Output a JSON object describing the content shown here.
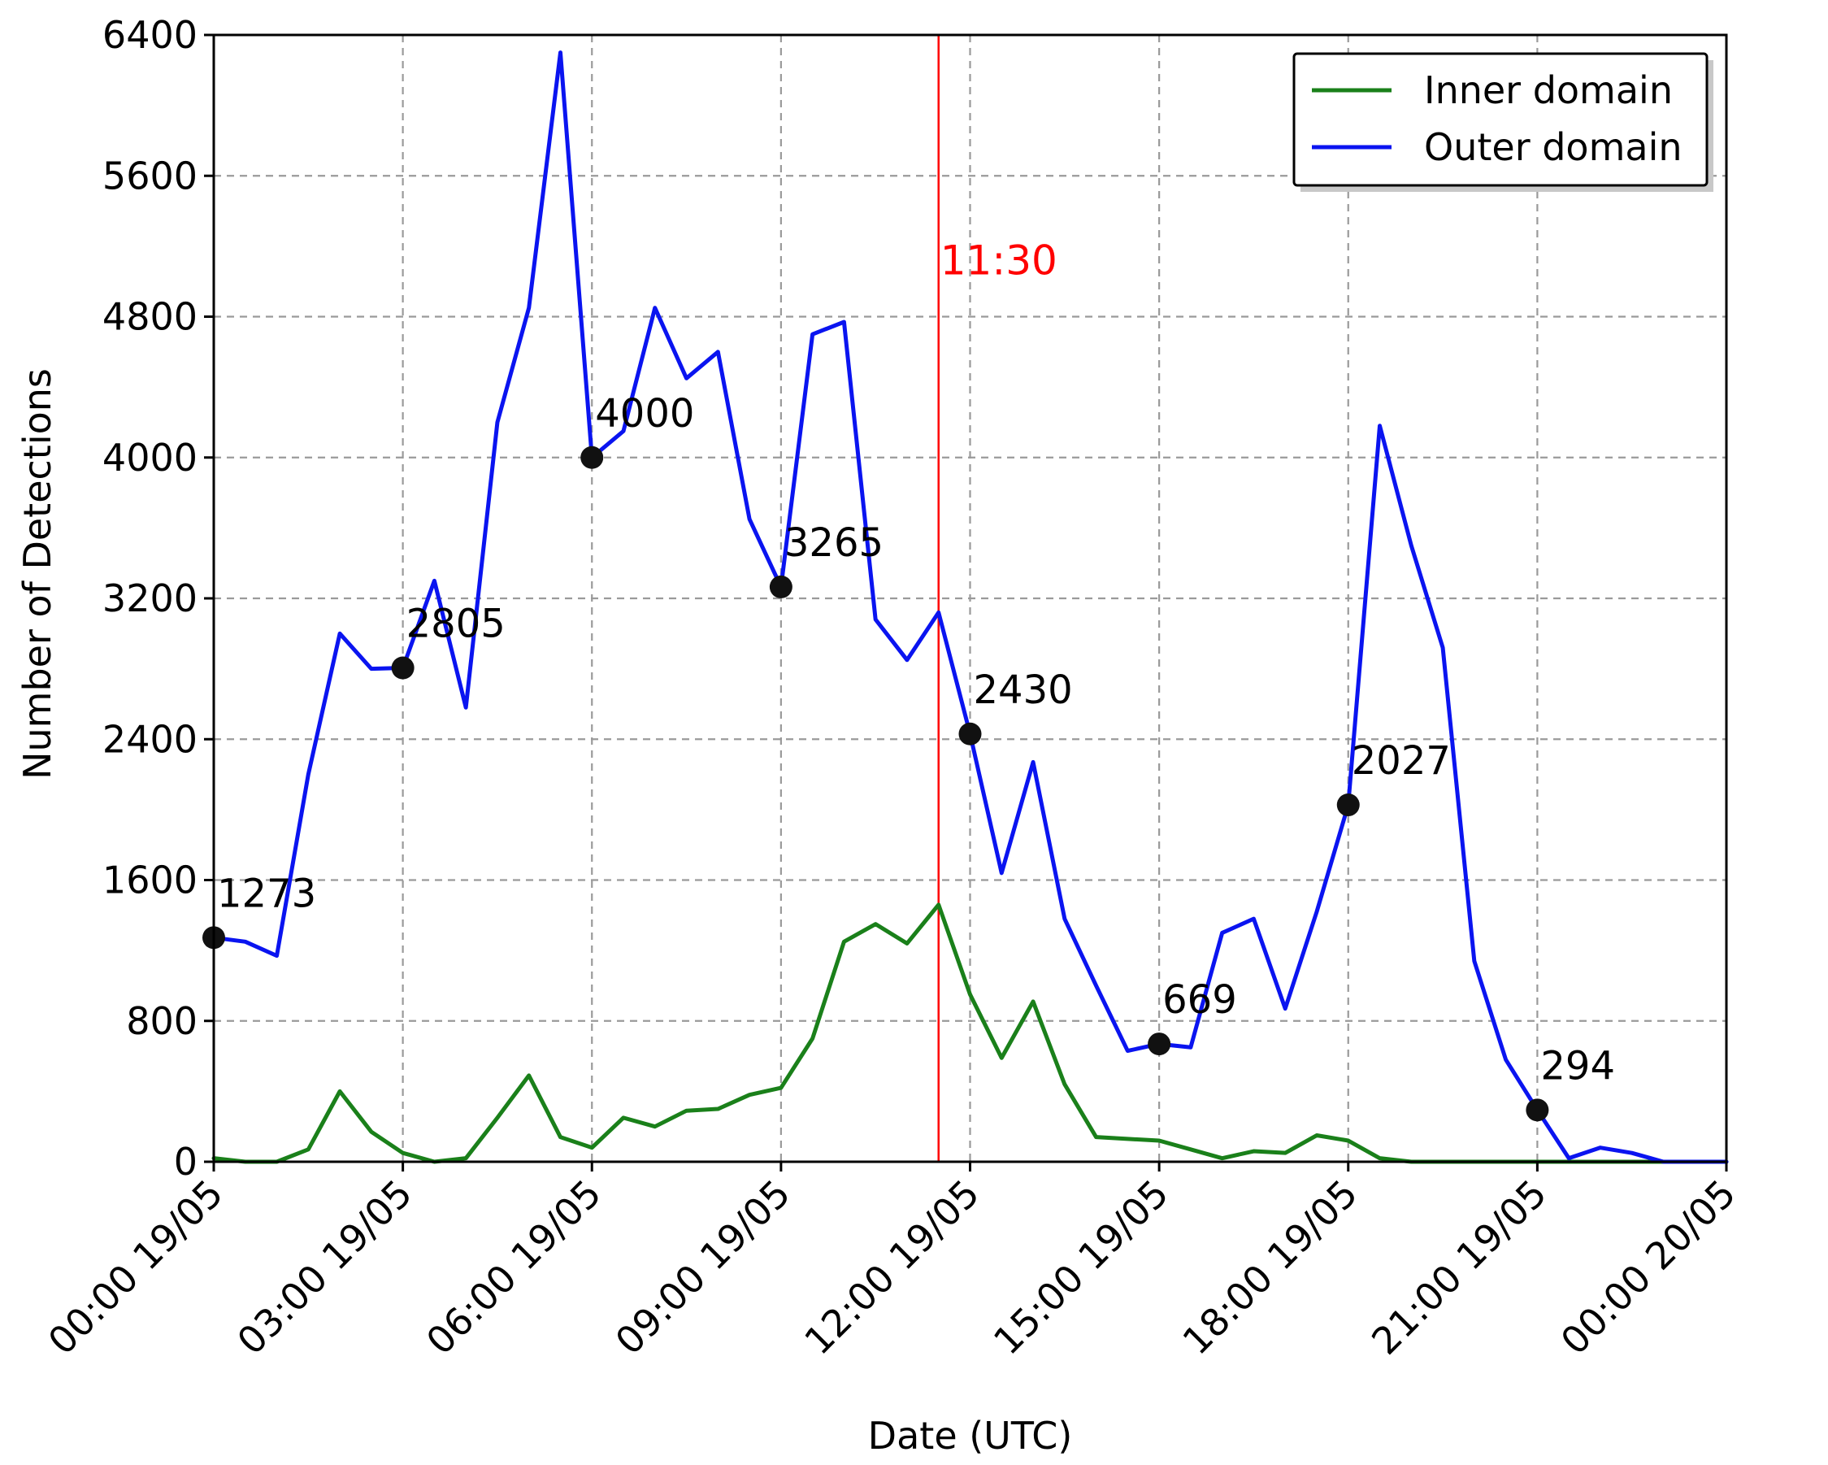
{
  "chart_data": {
    "type": "line",
    "xlabel": "Date (UTC)",
    "ylabel": "Number of Detections",
    "ylim": [
      0,
      6400
    ],
    "xlim": [
      "00:00 19/05",
      "00:00 20/05"
    ],
    "x_step": "00:20",
    "grid": true,
    "legend_position": "top-right",
    "x_ticks": [
      {
        "hour": 0,
        "label": "00:00 19/05"
      },
      {
        "hour": 3,
        "label": "03:00 19/05"
      },
      {
        "hour": 6,
        "label": "06:00 19/05"
      },
      {
        "hour": 9,
        "label": "09:00 19/05"
      },
      {
        "hour": 12,
        "label": "12:00 19/05"
      },
      {
        "hour": 15,
        "label": "15:00 19/05"
      },
      {
        "hour": 18,
        "label": "18:00 19/05"
      },
      {
        "hour": 21,
        "label": "21:00 19/05"
      },
      {
        "hour": 24,
        "label": "00:00 20/05"
      }
    ],
    "y_ticks": [
      0,
      800,
      1600,
      2400,
      3200,
      4000,
      4800,
      5600,
      6400
    ],
    "x": [
      0,
      0.5,
      1,
      1.5,
      2,
      2.5,
      3,
      3.5,
      4,
      4.5,
      5,
      5.5,
      6,
      6.5,
      7,
      7.5,
      8,
      8.5,
      9,
      9.5,
      10,
      10.5,
      11,
      11.5,
      12,
      12.5,
      13,
      13.5,
      14,
      14.5,
      15,
      15.5,
      16,
      16.5,
      17,
      17.5,
      18,
      18.5,
      19,
      19.5,
      20,
      20.5,
      21,
      21.5,
      22,
      22.5,
      23,
      23.5,
      24
    ],
    "series": [
      {
        "name": "Inner domain",
        "color": "#1a801a",
        "values": [
          20,
          0,
          0,
          70,
          400,
          170,
          50,
          0,
          20,
          250,
          490,
          140,
          80,
          250,
          200,
          290,
          300,
          380,
          420,
          700,
          1250,
          1350,
          1240,
          1460,
          950,
          590,
          910,
          440,
          140,
          130,
          120,
          70,
          20,
          60,
          50,
          150,
          120,
          20,
          0,
          0,
          0,
          0,
          0,
          0,
          0,
          0,
          0,
          0,
          0
        ]
      },
      {
        "name": "Outer domain",
        "color": "#0a14f0",
        "values": [
          1273,
          1250,
          1170,
          2200,
          3000,
          2800,
          2805,
          3300,
          2580,
          4200,
          4850,
          6300,
          4000,
          4150,
          4850,
          4450,
          4600,
          3650,
          3265,
          4700,
          4770,
          3080,
          2850,
          3120,
          2430,
          1640,
          2270,
          1380,
          1000,
          630,
          669,
          650,
          1300,
          1380,
          870,
          1420,
          2027,
          4180,
          3500,
          2920,
          1140,
          580,
          294,
          20,
          80,
          50,
          0,
          0,
          0
        ]
      }
    ],
    "annotations": [
      {
        "x": 0,
        "y": 1273,
        "label": "1273"
      },
      {
        "x": 3,
        "y": 2805,
        "label": "2805"
      },
      {
        "x": 6,
        "y": 4000,
        "label": "4000"
      },
      {
        "x": 9,
        "y": 3265,
        "label": "3265"
      },
      {
        "x": 12,
        "y": 2430,
        "label": "2430"
      },
      {
        "x": 15,
        "y": 669,
        "label": "669"
      },
      {
        "x": 18,
        "y": 2027,
        "label": "2027"
      },
      {
        "x": 21,
        "y": 294,
        "label": "294"
      }
    ],
    "vertical_marker": {
      "x": 11.5,
      "label": "11:30",
      "color": "#ff0000"
    }
  }
}
